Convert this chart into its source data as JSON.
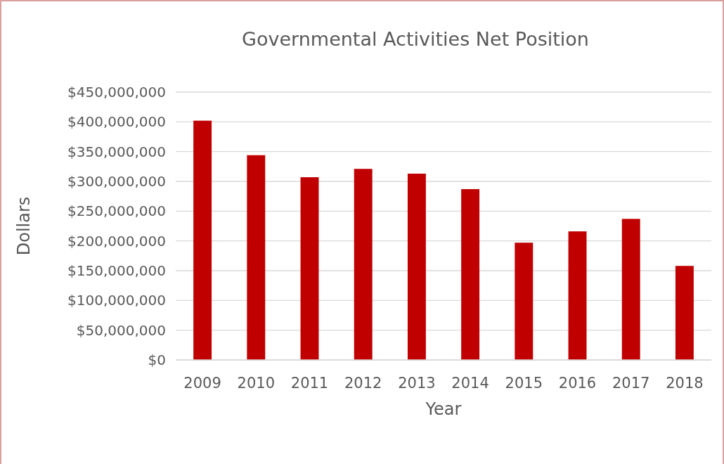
{
  "chart_data": {
    "type": "bar",
    "title": "Governmental Activities Net Position",
    "xlabel": "Year",
    "ylabel": "Dollars",
    "categories": [
      "2009",
      "2010",
      "2011",
      "2012",
      "2013",
      "2014",
      "2015",
      "2016",
      "2017",
      "2018"
    ],
    "values": [
      402000000,
      344000000,
      307000000,
      321000000,
      313000000,
      287000000,
      197000000,
      216000000,
      237000000,
      158000000
    ],
    "color": "#c00000",
    "ylim": [
      0,
      450000000
    ],
    "yticks": [
      {
        "value": 0,
        "label": "$0"
      },
      {
        "value": 50000000,
        "label": "$50,000,000"
      },
      {
        "value": 100000000,
        "label": "$100,000,000"
      },
      {
        "value": 150000000,
        "label": "$150,000,000"
      },
      {
        "value": 200000000,
        "label": "$200,000,000"
      },
      {
        "value": 250000000,
        "label": "$250,000,000"
      },
      {
        "value": 300000000,
        "label": "$300,000,000"
      },
      {
        "value": 350000000,
        "label": "$350,000,000"
      },
      {
        "value": 400000000,
        "label": "$400,000,000"
      },
      {
        "value": 450000000,
        "label": "$450,000,000"
      }
    ],
    "grid": "y"
  }
}
